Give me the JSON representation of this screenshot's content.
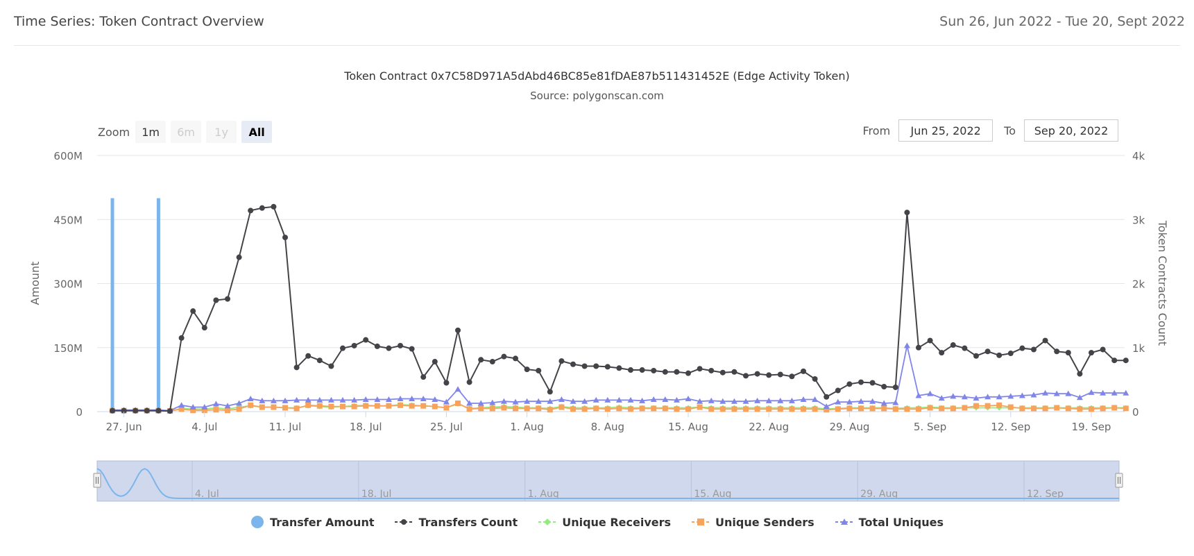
{
  "header": {
    "title": "Time Series: Token Contract Overview",
    "date_range": "Sun 26, Jun 2022 - Tue 20, Sept 2022"
  },
  "zoom": {
    "label": "Zoom",
    "buttons": [
      {
        "label": "1m",
        "state": "enabled"
      },
      {
        "label": "6m",
        "state": "disabled"
      },
      {
        "label": "1y",
        "state": "disabled"
      },
      {
        "label": "All",
        "state": "active"
      }
    ]
  },
  "range": {
    "from_label": "From",
    "from_value": "Jun 25, 2022",
    "to_label": "To",
    "to_value": "Sep 20, 2022"
  },
  "colors": {
    "transfer_amount": "#7cb5ec",
    "transfers_count": "#434348",
    "unique_receivers": "#90ed7d",
    "unique_senders": "#f7a35c",
    "total_uniques": "#8085e9",
    "navigator_fill": "#cfd8ec",
    "gridline": "#e6e6e6"
  },
  "chart_data": {
    "type": "line",
    "title": "Token Contract 0x7C58D971A5dAbd46BC85e81fDAE87b511431452E (Edge Activity Token)",
    "subtitle": "Source: polygonscan.com",
    "x_start": "2022-06-26",
    "x_end": "2022-09-20",
    "x_ticks": [
      "27. Jun",
      "4. Jul",
      "11. Jul",
      "18. Jul",
      "25. Jul",
      "1. Aug",
      "8. Aug",
      "15. Aug",
      "22. Aug",
      "29. Aug",
      "5. Sep",
      "12. Sep",
      "19. Sep"
    ],
    "navigator_ticks": [
      "4. Jul",
      "18. Jul",
      "1. Aug",
      "15. Aug",
      "29. Aug",
      "12. Sep"
    ],
    "y_left": {
      "label": "Amount",
      "ticks": [
        "0",
        "150M",
        "300M",
        "450M",
        "600M"
      ],
      "range": [
        0,
        600000000
      ]
    },
    "y_right": {
      "label": "Token Contracts Count",
      "ticks": [
        "0",
        "1k",
        "2k",
        "3k",
        "4k"
      ],
      "range": [
        0,
        4000
      ]
    },
    "legend": [
      "Transfer Amount",
      "Transfers Count",
      "Unique Receivers",
      "Unique Senders",
      "Total Uniques"
    ],
    "series": [
      {
        "name": "Transfer Amount",
        "type": "column",
        "axis": "left",
        "points": [
          [
            "2022-06-26",
            500000000
          ],
          [
            "2022-06-30",
            500000000
          ]
        ]
      },
      {
        "name": "Transfers Count",
        "type": "line",
        "axis": "right",
        "start": "2022-06-26",
        "values": [
          15,
          15,
          15,
          15,
          15,
          10,
          1150,
          1570,
          1310,
          1740,
          1760,
          2410,
          3140,
          3180,
          3200,
          2720,
          690,
          870,
          800,
          710,
          990,
          1030,
          1120,
          1020,
          990,
          1030,
          980,
          540,
          780,
          450,
          1270,
          460,
          810,
          780,
          860,
          830,
          660,
          640,
          310,
          790,
          740,
          710,
          710,
          700,
          680,
          650,
          650,
          640,
          620,
          620,
          600,
          670,
          640,
          610,
          620,
          560,
          590,
          570,
          580,
          550,
          630,
          510,
          230,
          330,
          430,
          460,
          450,
          390,
          380,
          3110,
          1000,
          1110,
          920,
          1040,
          990,
          870,
          940,
          880,
          910,
          990,
          970,
          1110,
          940,
          920,
          590,
          920,
          970,
          800,
          800
        ]
      },
      {
        "name": "Unique Receivers",
        "type": "line",
        "axis": "right",
        "start": "2022-06-26",
        "values": [
          15,
          15,
          15,
          15,
          15,
          10,
          50,
          40,
          40,
          60,
          40,
          70,
          90,
          70,
          70,
          60,
          60,
          90,
          80,
          70,
          80,
          90,
          100,
          90,
          90,
          110,
          100,
          90,
          80,
          60,
          120,
          50,
          60,
          70,
          80,
          70,
          60,
          60,
          50,
          80,
          60,
          60,
          60,
          60,
          70,
          60,
          60,
          60,
          60,
          60,
          60,
          70,
          60,
          60,
          60,
          60,
          60,
          60,
          60,
          60,
          60,
          60,
          40,
          50,
          60,
          60,
          60,
          60,
          50,
          60,
          60,
          70,
          60,
          60,
          60,
          60,
          60,
          60,
          60,
          60,
          60,
          60,
          60,
          60,
          60,
          60,
          60,
          60,
          60
        ]
      },
      {
        "name": "Unique Senders",
        "type": "line",
        "axis": "right",
        "start": "2022-06-26",
        "values": [
          15,
          15,
          15,
          15,
          15,
          10,
          40,
          20,
          20,
          30,
          20,
          40,
          100,
          70,
          70,
          60,
          50,
          100,
          90,
          80,
          80,
          80,
          90,
          90,
          90,
          100,
          90,
          90,
          80,
          60,
          130,
          40,
          50,
          50,
          60,
          50,
          50,
          50,
          30,
          70,
          40,
          40,
          50,
          40,
          50,
          40,
          50,
          50,
          50,
          40,
          40,
          70,
          40,
          40,
          40,
          40,
          40,
          40,
          40,
          40,
          40,
          40,
          30,
          40,
          50,
          50,
          50,
          50,
          40,
          40,
          40,
          60,
          50,
          50,
          60,
          90,
          90,
          100,
          70,
          50,
          50,
          50,
          60,
          50,
          40,
          40,
          50,
          60,
          50
        ]
      },
      {
        "name": "Total Uniques",
        "type": "line",
        "axis": "right",
        "start": "2022-06-26",
        "values": [
          25,
          25,
          25,
          25,
          25,
          15,
          100,
          70,
          70,
          120,
          90,
          130,
          200,
          170,
          170,
          170,
          180,
          180,
          180,
          180,
          180,
          180,
          190,
          190,
          190,
          200,
          200,
          200,
          190,
          150,
          350,
          130,
          130,
          140,
          160,
          150,
          160,
          160,
          160,
          190,
          160,
          160,
          180,
          180,
          180,
          180,
          170,
          190,
          190,
          180,
          200,
          160,
          170,
          160,
          160,
          160,
          170,
          170,
          170,
          170,
          190,
          190,
          80,
          150,
          150,
          160,
          160,
          130,
          140,
          1030,
          250,
          280,
          210,
          240,
          230,
          210,
          230,
          230,
          240,
          250,
          260,
          290,
          280,
          280,
          220,
          300,
          290,
          290,
          290
        ]
      }
    ]
  }
}
